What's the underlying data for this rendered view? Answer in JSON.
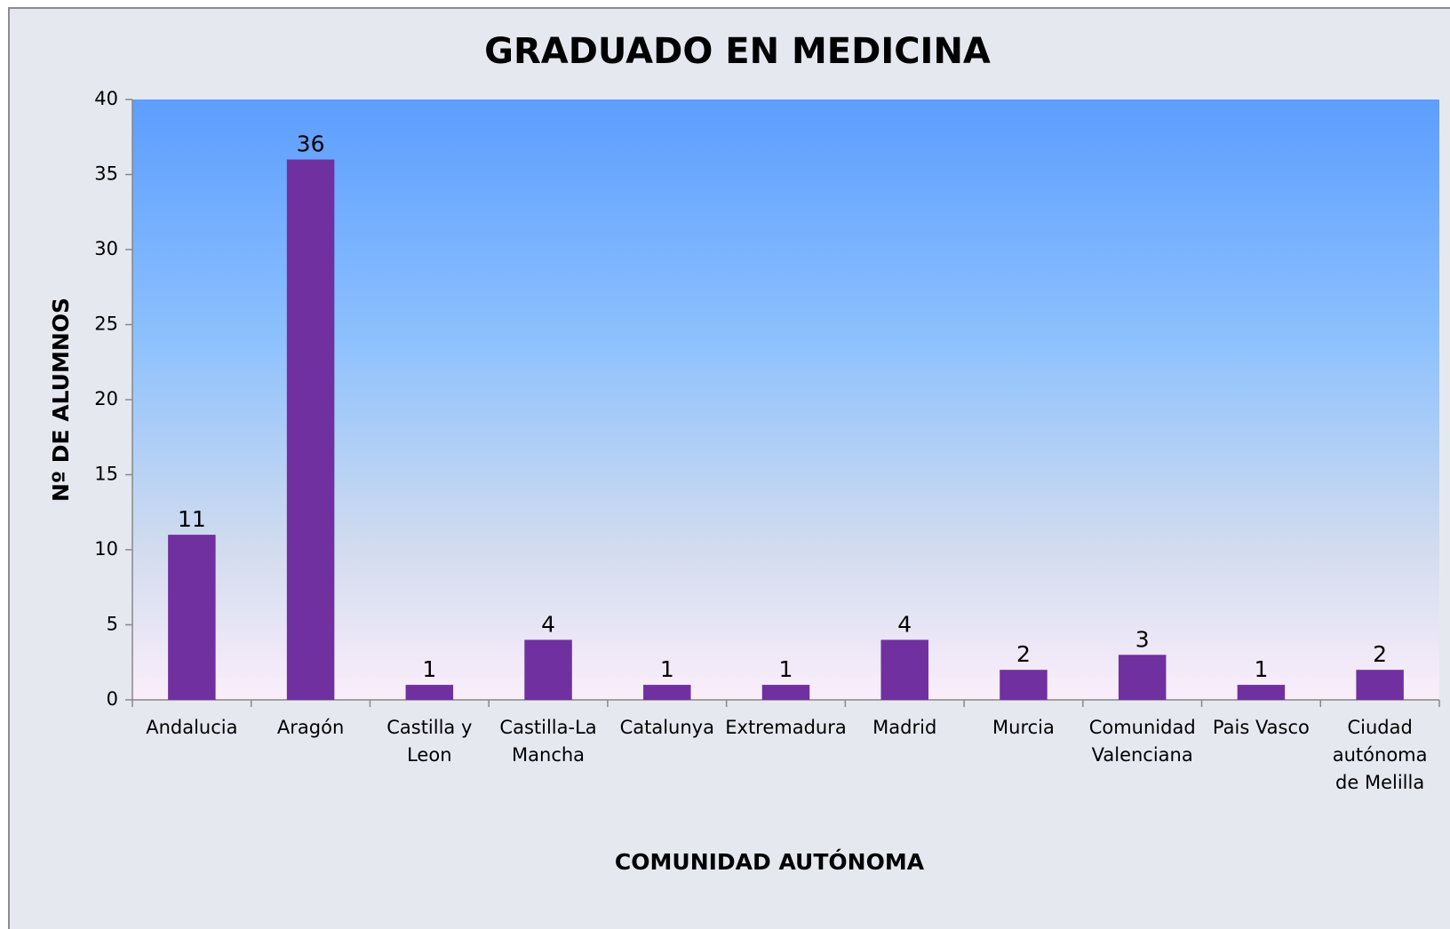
{
  "chart_data": {
    "type": "bar",
    "title": "GRADUADO EN MEDICINA",
    "x_label": "COMUNIDAD AUTÓNOMA",
    "y_label": "Nº DE ALUMNOS",
    "categories": [
      "Andalucia",
      "Aragón",
      "Castilla y Leon",
      "Castilla-La Mancha",
      "Catalunya",
      "Extremadura",
      "Madrid",
      "Murcia",
      "Comunidad Valenciana",
      "Pais Vasco",
      "Ciudad autónoma de Melilla"
    ],
    "values": [
      11,
      36,
      1,
      4,
      1,
      1,
      4,
      2,
      3,
      1,
      2
    ],
    "color": "#7030a0",
    "ylim": [
      0,
      40
    ],
    "yticks": [
      0,
      5,
      10,
      15,
      20,
      25,
      30,
      35,
      40
    ],
    "grid": false
  }
}
